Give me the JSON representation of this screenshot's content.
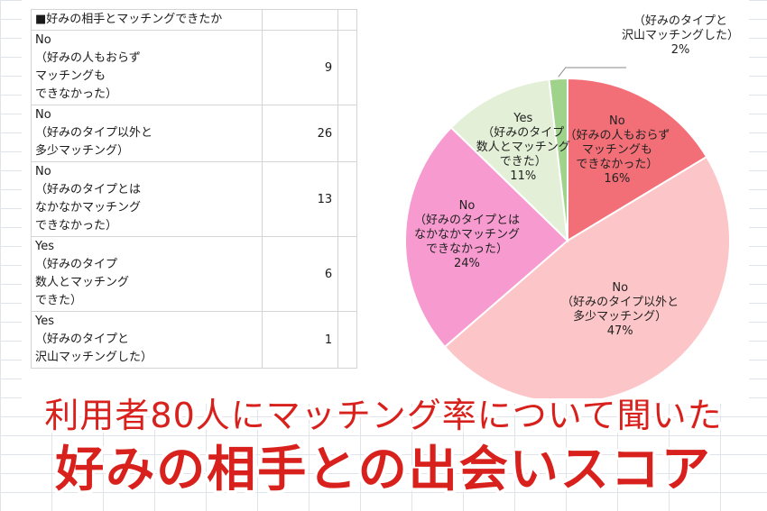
{
  "table": {
    "header": "■好みの相手とマッチングできたか",
    "rows": [
      {
        "lines": [
          "No",
          "（好みの人もおらず",
          "マッチングも",
          "できなかった）"
        ],
        "count": "9"
      },
      {
        "lines": [
          "No",
          "（好みのタイプ以外と",
          "多少マッチング）"
        ],
        "count": "26"
      },
      {
        "lines": [
          "No",
          "（好みのタイプとは",
          "なかなかマッチング",
          "できなかった）"
        ],
        "count": "13"
      },
      {
        "lines": [
          "Yes",
          "（好みのタイプ",
          "数人とマッチング",
          "できた）"
        ],
        "count": "6"
      },
      {
        "lines": [
          "Yes",
          "（好みのタイプと",
          "沢山マッチングした）"
        ],
        "count": "1"
      }
    ]
  },
  "chart_data": {
    "type": "pie",
    "start": "top",
    "direction": "clockwise",
    "slices": [
      {
        "label_lines": [
          "No",
          "（好みの人もおらず",
          "マッチングも",
          "できなかった）"
        ],
        "value": 9,
        "percent": "16%",
        "color": "#f36f78"
      },
      {
        "label_lines": [
          "No",
          "（好みのタイプ以外と",
          "多少マッチング）"
        ],
        "value": 26,
        "percent": "47%",
        "color": "#fcc5c7"
      },
      {
        "label_lines": [
          "No",
          "（好みのタイプとは",
          "なかなかマッチング",
          "できなかった）"
        ],
        "value": 13,
        "percent": "24%",
        "color": "#f79ad0"
      },
      {
        "label_lines": [
          "Yes",
          "（好みのタイプ",
          "数人とマッチング",
          "できた）"
        ],
        "value": 6,
        "percent": "11%",
        "color": "#e3efd6"
      },
      {
        "label_lines": [
          "Yes",
          "（好みのタイプと",
          "沢山マッチングした）"
        ],
        "value": 1,
        "percent": "2%",
        "color": "#9fd38c"
      }
    ]
  },
  "titles": {
    "subtitle": "利用者80人にマッチング率について聞いた",
    "main": "好みの相手との出会いスコア"
  },
  "colors": {
    "title": "#d8211c",
    "slice_border": "#ffffff"
  }
}
